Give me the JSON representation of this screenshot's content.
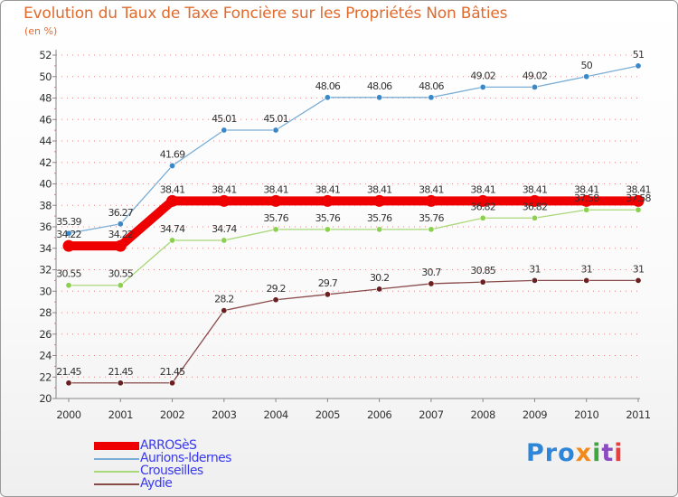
{
  "title": "Evolution du Taux de Taxe Foncière sur les Propriétés Non Bâties",
  "unit_label": "(en %)",
  "logo": {
    "p1": "Pro",
    "p2": "x",
    "p3": "i",
    "p4": "t",
    "p5": "i"
  },
  "colors": {
    "axis": "#888888",
    "grid": "#c83030",
    "tick_text": "#333333",
    "value_text": "#333333"
  },
  "chart_data": {
    "type": "line",
    "title": "Evolution du Taux de Taxe Foncière sur les Propriétés Non Bâties",
    "xlabel": "",
    "ylabel": "(en %)",
    "categories": [
      "2000",
      "2001",
      "2002",
      "2003",
      "2004",
      "2005",
      "2006",
      "2007",
      "2008",
      "2009",
      "2010",
      "2011"
    ],
    "ylim": [
      20,
      52
    ],
    "yticks": [
      20,
      22,
      24,
      26,
      28,
      30,
      32,
      34,
      36,
      38,
      40,
      42,
      44,
      46,
      48,
      50,
      52
    ],
    "legend_position": "bottom-left",
    "series": [
      {
        "name": "ARROSèS",
        "color": "#ee0000",
        "emphasis": true,
        "values": [
          34.22,
          34.22,
          38.41,
          38.41,
          38.41,
          38.41,
          38.41,
          38.41,
          38.41,
          38.41,
          38.41,
          38.41
        ],
        "labels": [
          "34.22",
          "34.22",
          "38.41",
          "38.41",
          "38.41",
          "38.41",
          "38.41",
          "38.41",
          "38.41",
          "38.41",
          "38.41",
          "38.41"
        ]
      },
      {
        "name": "Aurions-Idernes",
        "color": "#7aaed6",
        "marker": "#3a88c8",
        "values": [
          35.39,
          36.27,
          41.69,
          45.01,
          45.01,
          48.06,
          48.06,
          48.06,
          49.02,
          49.02,
          50,
          51
        ],
        "labels": [
          "35.39",
          "36.27",
          "41.69",
          "45.01",
          "45.01",
          "48.06",
          "48.06",
          "48.06",
          "49.02",
          "49.02",
          "50",
          "51"
        ]
      },
      {
        "name": "Crouseilles",
        "color": "#a8d878",
        "marker": "#8cd050",
        "values": [
          30.55,
          30.55,
          34.74,
          34.74,
          35.76,
          35.76,
          35.76,
          35.76,
          36.82,
          36.82,
          37.58,
          37.58
        ],
        "labels": [
          "30.55",
          "30.55",
          "34.74",
          "34.74",
          "35.76",
          "35.76",
          "35.76",
          "35.76",
          "36.82",
          "36.82",
          "37.58",
          "37.58"
        ]
      },
      {
        "name": "Aydie",
        "color": "#8a4a4a",
        "marker": "#6a2020",
        "values": [
          21.45,
          21.45,
          21.45,
          28.2,
          29.2,
          29.7,
          30.2,
          30.7,
          30.85,
          31,
          31,
          31
        ],
        "labels": [
          "21.45",
          "21.45",
          "21.45",
          "28.2",
          "29.2",
          "29.7",
          "30.2",
          "30.7",
          "30.85",
          "31",
          "31",
          "31"
        ]
      }
    ]
  }
}
